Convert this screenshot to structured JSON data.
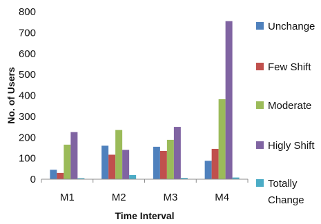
{
  "chart_data": {
    "type": "bar",
    "title": "",
    "xlabel": "Time Interval",
    "ylabel": "No. of Users",
    "categories": [
      "M1",
      "M2",
      "M3",
      "M4"
    ],
    "ylim": [
      0,
      800
    ],
    "yticks": [
      "0",
      "100",
      "200",
      "300",
      "400",
      "500",
      "600",
      "700",
      "800"
    ],
    "grid": false,
    "legend_position": "right",
    "series": [
      {
        "name": "Unchange",
        "color": "#4F81BD",
        "values": [
          45,
          160,
          155,
          88
        ]
      },
      {
        "name": "Few Shift",
        "color": "#C0504D",
        "values": [
          30,
          117,
          135,
          145
        ]
      },
      {
        "name": "Moderate",
        "color": "#9BBB59",
        "values": [
          165,
          235,
          188,
          382
        ]
      },
      {
        "name": "Higly Shift",
        "color": "#8064A2",
        "values": [
          225,
          140,
          250,
          755
        ]
      },
      {
        "name": "Totally Change",
        "color": "#4BACC6",
        "values": [
          5,
          20,
          6,
          8
        ]
      }
    ]
  }
}
